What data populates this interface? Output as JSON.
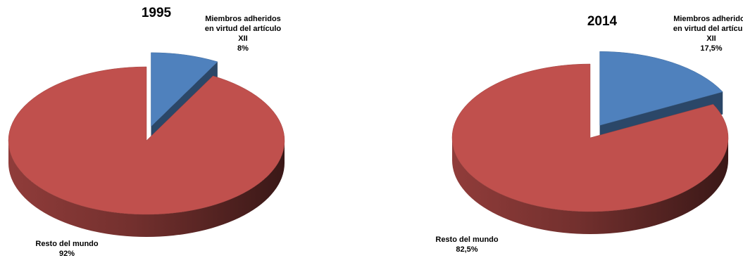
{
  "chart_data": [
    {
      "type": "pie",
      "title": "1995",
      "categories": [
        "Miembros adheridos en virtud del artículo XII",
        "Resto del mundo"
      ],
      "values": [
        8,
        92
      ],
      "value_labels": [
        "8%",
        "92%"
      ],
      "colors": [
        "#4f81bd",
        "#c0504d"
      ]
    },
    {
      "type": "pie",
      "title": "2014",
      "categories": [
        "Miembros adheridos en virtud del artículo XII",
        "Resto del mundo"
      ],
      "values": [
        17.5,
        82.5
      ],
      "value_labels": [
        "17,5%",
        "82,5%"
      ],
      "colors": [
        "#4f81bd",
        "#c0504d"
      ]
    }
  ]
}
